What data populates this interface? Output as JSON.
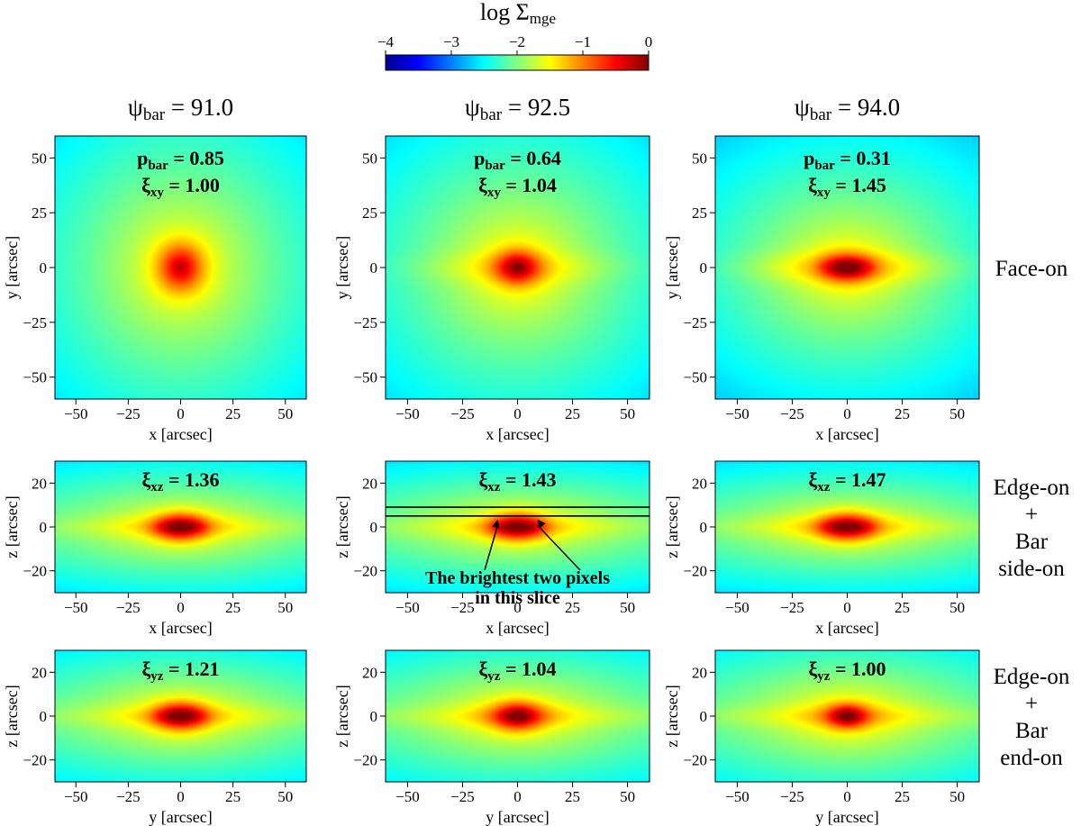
{
  "chart_data": {
    "type": "heatmap",
    "colorbar": {
      "title_main": "log Σ",
      "title_sub": "mge",
      "ticks": [
        "−4",
        "−3",
        "−2",
        "−1",
        "0"
      ],
      "range": [
        -4,
        0
      ],
      "colormap": "jet"
    },
    "columns": [
      {
        "psi_main": "ψ",
        "psi_sub": "bar",
        "psi_value": " = 91.0",
        "p_main": "p",
        "p_sub": "bar",
        "p_value": " = 0.85"
      },
      {
        "psi_main": "ψ",
        "psi_sub": "bar",
        "psi_value": " = 92.5",
        "p_main": "p",
        "p_sub": "bar",
        "p_value": " = 0.64"
      },
      {
        "psi_main": "ψ",
        "psi_sub": "bar",
        "psi_value": " = 94.0",
        "p_main": "p",
        "p_sub": "bar",
        "p_value": " = 0.31"
      }
    ],
    "rows": [
      {
        "label_lines": [
          "Face-on"
        ],
        "xlabel": "x [arcsec]",
        "ylabel": "y [arcsec]",
        "xlim": [
          -60,
          60
        ],
        "ylim": [
          -60,
          60
        ],
        "xticks": [
          "−50",
          "−25",
          "0",
          "25",
          "50"
        ],
        "xtick_values": [
          -50,
          -25,
          0,
          25,
          50
        ],
        "yticks": [
          "50",
          "25",
          "0",
          "−25",
          "−50"
        ],
        "ytick_values": [
          50,
          25,
          0,
          -25,
          -50
        ],
        "xi_main": "ξ",
        "xi_sub": "xy",
        "xi_values": [
          " = 1.00",
          " = 1.04",
          " = 1.45"
        ]
      },
      {
        "label_lines": [
          "Edge-on",
          "+",
          "Bar",
          "side-on"
        ],
        "xlabel": "x [arcsec]",
        "ylabel": "z [arcsec]",
        "xlim": [
          -60,
          60
        ],
        "ylim": [
          -30,
          30
        ],
        "xticks": [
          "−50",
          "−25",
          "0",
          "25",
          "50"
        ],
        "xtick_values": [
          -50,
          -25,
          0,
          25,
          50
        ],
        "yticks": [
          "20",
          "0",
          "−20"
        ],
        "ytick_values": [
          20,
          0,
          -20
        ],
        "xi_main": "ξ",
        "xi_sub": "xz",
        "xi_values": [
          " = 1.36",
          " = 1.43",
          " = 1.47"
        ]
      },
      {
        "label_lines": [
          "Edge-on",
          "+",
          "Bar",
          "end-on"
        ],
        "xlabel": "y [arcsec]",
        "ylabel": "z [arcsec]",
        "xlim": [
          -60,
          60
        ],
        "ylim": [
          -30,
          30
        ],
        "xticks": [
          "−50",
          "−25",
          "0",
          "25",
          "50"
        ],
        "xtick_values": [
          -50,
          -25,
          0,
          25,
          50
        ],
        "yticks": [
          "20",
          "0",
          "−20"
        ],
        "ytick_values": [
          20,
          0,
          -20
        ],
        "xi_main": "ξ",
        "xi_sub": "yz",
        "xi_values": [
          " = 1.21",
          " = 1.04",
          " = 1.00"
        ]
      }
    ],
    "annotation": {
      "text_lines": [
        "The brightest two pixels",
        "in this slice"
      ],
      "slice_z_range": [
        5,
        9
      ],
      "arrow_targets_x": [
        -9,
        9
      ]
    }
  }
}
